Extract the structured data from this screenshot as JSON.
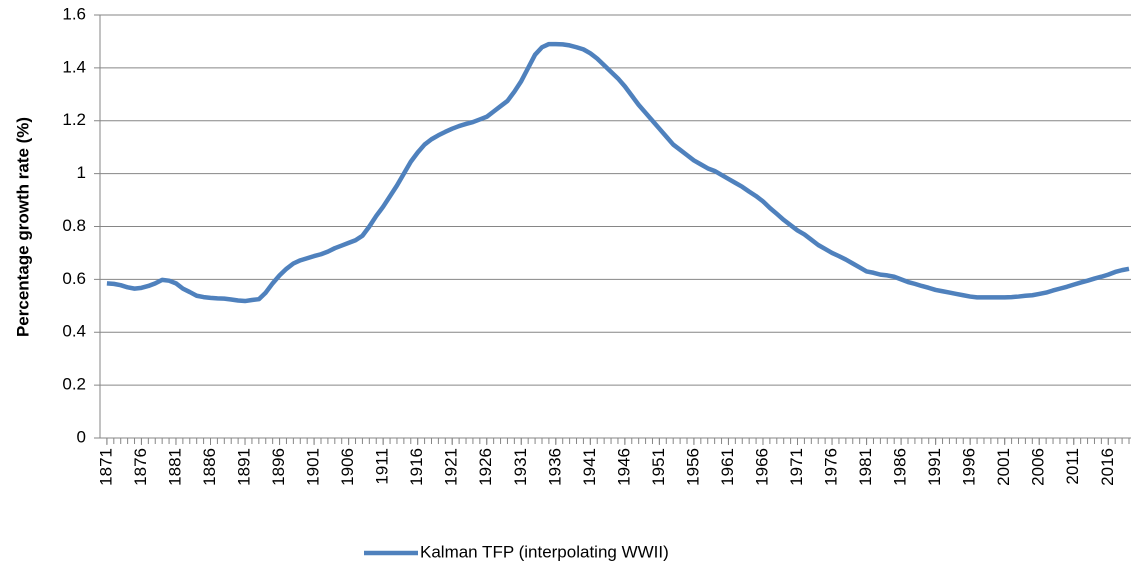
{
  "chart_data": {
    "type": "line",
    "y_label": "Percentage growth rate (%)",
    "x": [
      1871,
      1872,
      1873,
      1874,
      1875,
      1876,
      1877,
      1878,
      1879,
      1880,
      1881,
      1882,
      1883,
      1884,
      1885,
      1886,
      1887,
      1888,
      1889,
      1890,
      1891,
      1892,
      1893,
      1894,
      1895,
      1896,
      1897,
      1898,
      1899,
      1900,
      1901,
      1902,
      1903,
      1904,
      1905,
      1906,
      1907,
      1908,
      1909,
      1910,
      1911,
      1912,
      1913,
      1914,
      1915,
      1916,
      1917,
      1918,
      1919,
      1920,
      1921,
      1922,
      1923,
      1924,
      1925,
      1926,
      1927,
      1928,
      1929,
      1930,
      1931,
      1932,
      1933,
      1934,
      1935,
      1936,
      1937,
      1938,
      1939,
      1940,
      1941,
      1942,
      1943,
      1944,
      1945,
      1946,
      1947,
      1948,
      1949,
      1950,
      1951,
      1952,
      1953,
      1954,
      1955,
      1956,
      1957,
      1958,
      1959,
      1960,
      1961,
      1962,
      1963,
      1964,
      1965,
      1966,
      1967,
      1968,
      1969,
      1970,
      1971,
      1972,
      1973,
      1974,
      1975,
      1976,
      1977,
      1978,
      1979,
      1980,
      1981,
      1982,
      1983,
      1984,
      1985,
      1986,
      1987,
      1988,
      1989,
      1990,
      1991,
      1992,
      1993,
      1994,
      1995,
      1996,
      1997,
      1998,
      1999,
      2000,
      2001,
      2002,
      2003,
      2004,
      2005,
      2006,
      2007,
      2008,
      2009,
      2010,
      2011,
      2012,
      2013,
      2014,
      2015,
      2016,
      2017,
      2018,
      2019
    ],
    "series": [
      {
        "name": "Kalman TFP (interpolating WWII)",
        "color": "#4f81bd",
        "values": [
          0.585,
          0.583,
          0.578,
          0.57,
          0.565,
          0.568,
          0.575,
          0.585,
          0.598,
          0.595,
          0.585,
          0.565,
          0.552,
          0.538,
          0.533,
          0.53,
          0.528,
          0.527,
          0.524,
          0.52,
          0.518,
          0.522,
          0.525,
          0.55,
          0.585,
          0.615,
          0.64,
          0.66,
          0.672,
          0.68,
          0.688,
          0.695,
          0.705,
          0.718,
          0.728,
          0.738,
          0.748,
          0.765,
          0.8,
          0.84,
          0.875,
          0.915,
          0.955,
          1.0,
          1.045,
          1.08,
          1.11,
          1.13,
          1.145,
          1.158,
          1.17,
          1.18,
          1.188,
          1.195,
          1.205,
          1.215,
          1.235,
          1.255,
          1.275,
          1.31,
          1.35,
          1.4,
          1.45,
          1.478,
          1.49,
          1.49,
          1.489,
          1.485,
          1.478,
          1.47,
          1.455,
          1.435,
          1.41,
          1.385,
          1.36,
          1.33,
          1.295,
          1.26,
          1.23,
          1.2,
          1.17,
          1.14,
          1.11,
          1.09,
          1.07,
          1.05,
          1.035,
          1.02,
          1.01,
          0.995,
          0.98,
          0.965,
          0.95,
          0.932,
          0.915,
          0.895,
          0.87,
          0.848,
          0.825,
          0.805,
          0.785,
          0.77,
          0.75,
          0.73,
          0.715,
          0.7,
          0.688,
          0.675,
          0.66,
          0.645,
          0.63,
          0.625,
          0.618,
          0.615,
          0.61,
          0.6,
          0.59,
          0.583,
          0.575,
          0.568,
          0.56,
          0.555,
          0.55,
          0.545,
          0.54,
          0.535,
          0.532,
          0.532,
          0.532,
          0.532,
          0.532,
          0.533,
          0.535,
          0.538,
          0.54,
          0.545,
          0.55,
          0.558,
          0.565,
          0.572,
          0.58,
          0.588,
          0.595,
          0.603,
          0.61,
          0.618,
          0.628,
          0.635,
          0.64
        ]
      }
    ],
    "xlim": [
      1870,
      2019
    ],
    "xticks": [
      1871,
      1876,
      1881,
      1886,
      1891,
      1896,
      1901,
      1906,
      1911,
      1916,
      1921,
      1926,
      1931,
      1936,
      1941,
      1946,
      1951,
      1956,
      1961,
      1966,
      1971,
      1976,
      1981,
      1986,
      1991,
      1996,
      2001,
      2006,
      2011,
      2016
    ],
    "ylim": [
      0,
      1.6
    ],
    "yticks": [
      0,
      0.2,
      0.4,
      0.6,
      0.8,
      1,
      1.2,
      1.4,
      1.6
    ],
    "grid": true,
    "legend": "bottom"
  }
}
